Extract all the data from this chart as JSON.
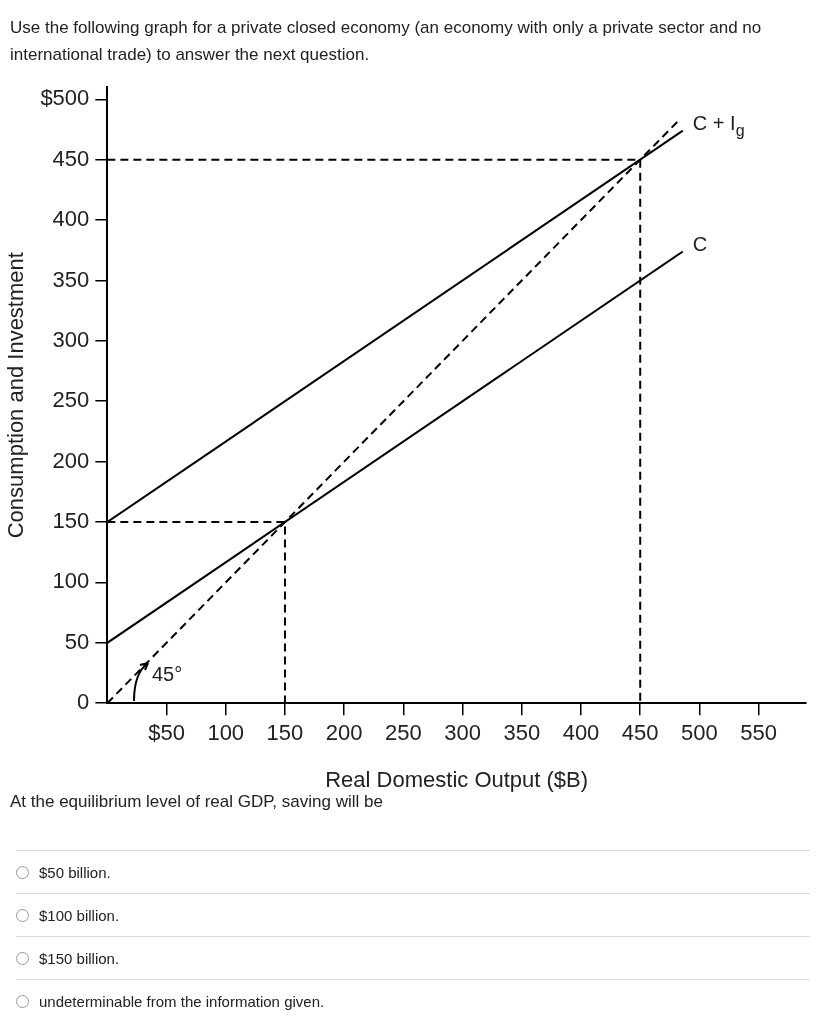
{
  "chart_data": {
    "type": "line",
    "title": "Use the following graph for a private closed economy (an economy with only a private sector and no international trade) to answer the next question.",
    "xlabel": "Real Domestic Output ($B)",
    "ylabel": "Consumption and Investment",
    "xlim": [
      0,
      590
    ],
    "ylim": [
      0,
      510
    ],
    "xticks": [
      {
        "value": 50,
        "label": "$50"
      },
      100,
      150,
      200,
      250,
      300,
      350,
      400,
      450,
      500,
      550
    ],
    "yticks": [
      {
        "value": 0,
        "label": "0"
      },
      50,
      100,
      150,
      200,
      250,
      300,
      350,
      400,
      450,
      {
        "value": 500,
        "label": "$500"
      }
    ],
    "grid": false,
    "legend": false,
    "marker": "none",
    "series": [
      {
        "name": "C + I$_{g}$",
        "color": "#000000",
        "x": [
          0,
          486
        ],
        "values": [
          150,
          474
        ],
        "line_style": "solid"
      },
      {
        "name": "C",
        "color": "#000000",
        "x": [
          0,
          486
        ],
        "values": [
          50,
          374
        ],
        "line_style": "solid"
      },
      {
        "color": "#000000",
        "x": [
          0,
          482
        ],
        "values": [
          0,
          482
        ],
        "line_style": "dashed"
      },
      {
        "color": "#000000",
        "x": [
          0,
          450,
          450
        ],
        "values": [
          450,
          450,
          0
        ],
        "line_style": "dashed"
      },
      {
        "color": "#000000",
        "x": [
          0,
          150,
          150
        ],
        "values": [
          150,
          150,
          0
        ],
        "line_style": "dashed"
      }
    ],
    "annotations": [
      "45°",
      "At the equilibrium level of real GDP, saving will be",
      "$50 billion.",
      "$100 billion.",
      "$150 billion.",
      "undeterminable from the information given."
    ]
  }
}
